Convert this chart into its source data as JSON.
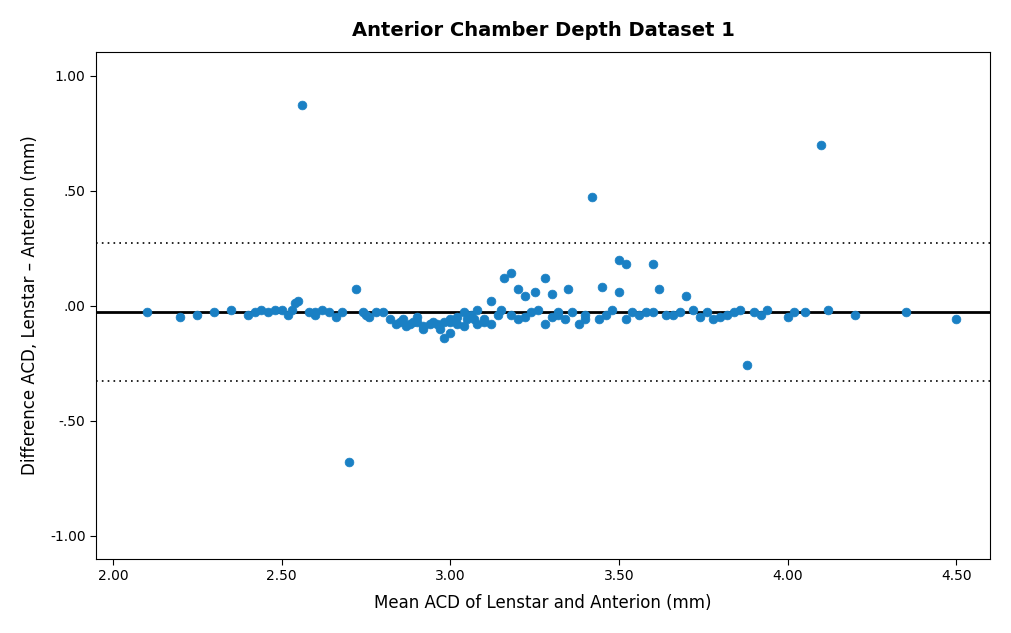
{
  "title": "Anterior Chamber Depth Dataset 1",
  "xlabel": "Mean ACD of Lenstar and Anterion (mm)",
  "ylabel": "Difference ACD, Lenstar – Anterion (mm)",
  "mean_diff": -0.03,
  "upper_loa": 0.27,
  "lower_loa": -0.33,
  "xlim": [
    1.95,
    4.6
  ],
  "ylim": [
    -1.1,
    1.1
  ],
  "xticks": [
    2.0,
    2.5,
    3.0,
    3.5,
    4.0,
    4.5
  ],
  "yticks": [
    -1.0,
    -0.5,
    0.0,
    0.5,
    1.0
  ],
  "point_color": "#1a80c4",
  "point_edgecolor": "#1a80c4",
  "background_color": "#ffffff",
  "scatter_x": [
    2.1,
    2.2,
    2.25,
    2.3,
    2.35,
    2.4,
    2.42,
    2.44,
    2.46,
    2.48,
    2.5,
    2.52,
    2.53,
    2.54,
    2.55,
    2.56,
    2.58,
    2.6,
    2.6,
    2.62,
    2.64,
    2.66,
    2.68,
    2.7,
    2.72,
    2.74,
    2.75,
    2.76,
    2.78,
    2.8,
    2.82,
    2.84,
    2.85,
    2.86,
    2.87,
    2.88,
    2.89,
    2.9,
    2.9,
    2.92,
    2.92,
    2.94,
    2.95,
    2.96,
    2.97,
    2.98,
    2.98,
    3.0,
    3.0,
    3.0,
    3.02,
    3.02,
    3.04,
    3.04,
    3.05,
    3.06,
    3.07,
    3.08,
    3.08,
    3.1,
    3.1,
    3.12,
    3.12,
    3.14,
    3.15,
    3.16,
    3.18,
    3.18,
    3.2,
    3.2,
    3.22,
    3.22,
    3.24,
    3.25,
    3.26,
    3.28,
    3.28,
    3.3,
    3.3,
    3.32,
    3.32,
    3.34,
    3.35,
    3.36,
    3.38,
    3.4,
    3.4,
    3.42,
    3.44,
    3.45,
    3.46,
    3.48,
    3.5,
    3.5,
    3.52,
    3.52,
    3.54,
    3.56,
    3.58,
    3.6,
    3.6,
    3.62,
    3.64,
    3.66,
    3.68,
    3.7,
    3.72,
    3.74,
    3.76,
    3.78,
    3.8,
    3.82,
    3.84,
    3.86,
    3.88,
    3.9,
    3.92,
    3.94,
    4.0,
    4.02,
    4.05,
    4.1,
    4.12,
    4.2,
    4.35,
    4.5
  ],
  "scatter_y": [
    -0.03,
    -0.05,
    -0.04,
    -0.03,
    -0.02,
    -0.04,
    -0.03,
    -0.02,
    -0.03,
    -0.02,
    -0.02,
    -0.04,
    -0.02,
    0.01,
    0.02,
    0.87,
    -0.03,
    -0.03,
    -0.04,
    -0.02,
    -0.03,
    -0.05,
    -0.03,
    -0.68,
    0.07,
    -0.03,
    -0.04,
    -0.05,
    -0.03,
    -0.03,
    -0.06,
    -0.08,
    -0.07,
    -0.06,
    -0.09,
    -0.08,
    -0.07,
    -0.07,
    -0.05,
    -0.1,
    -0.09,
    -0.08,
    -0.07,
    -0.08,
    -0.1,
    -0.14,
    -0.07,
    -0.12,
    -0.07,
    -0.06,
    -0.08,
    -0.05,
    -0.09,
    -0.03,
    -0.06,
    -0.04,
    -0.06,
    -0.02,
    -0.08,
    -0.06,
    -0.07,
    -0.08,
    0.02,
    -0.04,
    -0.02,
    0.12,
    0.14,
    -0.04,
    0.07,
    -0.06,
    -0.05,
    0.04,
    -0.03,
    0.06,
    -0.02,
    -0.08,
    0.12,
    0.05,
    -0.05,
    -0.04,
    -0.03,
    -0.06,
    0.07,
    -0.03,
    -0.08,
    -0.06,
    -0.04,
    0.47,
    -0.06,
    0.08,
    -0.04,
    -0.02,
    0.2,
    0.06,
    0.18,
    -0.06,
    -0.03,
    -0.04,
    -0.03,
    0.18,
    -0.03,
    0.07,
    -0.04,
    -0.04,
    -0.03,
    0.04,
    -0.02,
    -0.05,
    -0.03,
    -0.06,
    -0.05,
    -0.04,
    -0.03,
    -0.02,
    -0.26,
    -0.03,
    -0.04,
    -0.02,
    -0.05,
    -0.03,
    -0.03,
    0.7,
    -0.02,
    -0.04,
    -0.03,
    -0.06
  ]
}
